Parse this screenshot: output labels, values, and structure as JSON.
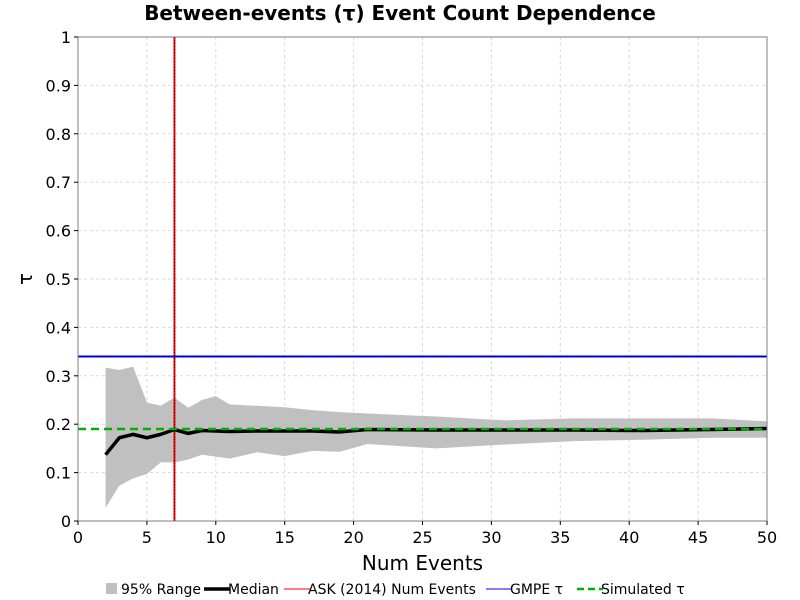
{
  "chart_data": {
    "type": "line",
    "title": "Between-events (τ) Event Count Dependence",
    "xlabel": "Num Events",
    "ylabel": "τ",
    "xlim": [
      0,
      50
    ],
    "ylim": [
      0,
      1
    ],
    "xticks": [
      "0",
      "5",
      "10",
      "15",
      "20",
      "25",
      "30",
      "35",
      "40",
      "45",
      "50"
    ],
    "yticks": [
      "0",
      "0.1",
      "0.2",
      "0.3",
      "0.4",
      "0.5",
      "0.6",
      "0.7",
      "0.8",
      "0.9",
      "1"
    ],
    "grid": true,
    "legend_position": "bottom",
    "legend": [
      "95% Range",
      "Median",
      "ASK (2014) Num Events",
      "GMPE τ",
      "Simulated τ"
    ],
    "series": [
      {
        "name": "95% Range",
        "kind": "band",
        "color": "#c0c0c0",
        "x": [
          2,
          3,
          4,
          5,
          6,
          7,
          8,
          9,
          10,
          11,
          13,
          15,
          17,
          19,
          21,
          26,
          31,
          36,
          41,
          46,
          50
        ],
        "lower": [
          0.027,
          0.073,
          0.088,
          0.097,
          0.121,
          0.121,
          0.127,
          0.137,
          0.133,
          0.129,
          0.142,
          0.134,
          0.145,
          0.143,
          0.159,
          0.15,
          0.158,
          0.165,
          0.168,
          0.172,
          0.172
        ],
        "upper": [
          0.317,
          0.312,
          0.319,
          0.245,
          0.238,
          0.255,
          0.234,
          0.25,
          0.258,
          0.241,
          0.238,
          0.235,
          0.229,
          0.225,
          0.222,
          0.216,
          0.208,
          0.212,
          0.212,
          0.212,
          0.206
        ]
      },
      {
        "name": "Median",
        "kind": "line",
        "color": "#000000",
        "x": [
          2,
          3,
          4,
          5,
          6,
          7,
          8,
          9,
          10,
          11,
          13,
          15,
          17,
          19,
          21,
          26,
          31,
          36,
          41,
          46,
          50
        ],
        "y": [
          0.137,
          0.172,
          0.179,
          0.172,
          0.179,
          0.189,
          0.181,
          0.187,
          0.186,
          0.185,
          0.186,
          0.186,
          0.186,
          0.184,
          0.189,
          0.188,
          0.188,
          0.188,
          0.187,
          0.189,
          0.191
        ]
      },
      {
        "name": "ASK (2014) Num Events",
        "kind": "vline",
        "color": "#ff0000",
        "x": 7
      },
      {
        "name": "GMPE τ",
        "kind": "hline",
        "color": "#0000ff",
        "y": 0.34
      },
      {
        "name": "Simulated τ",
        "kind": "hline-dashed",
        "color": "#00b000",
        "y": 0.19
      }
    ]
  }
}
